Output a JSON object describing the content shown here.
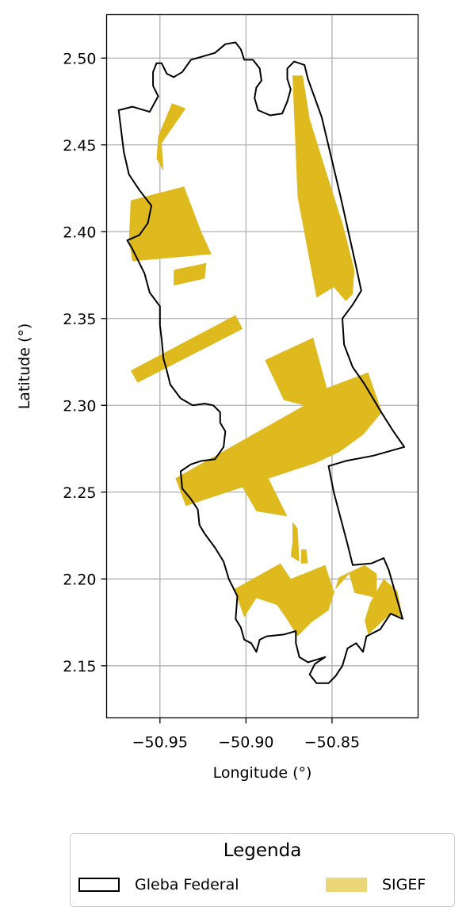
{
  "chart_data": {
    "type": "map",
    "xlabel": "Longitude (°)",
    "ylabel": "Latitude (°)",
    "xlim": [
      -50.981,
      -50.8
    ],
    "ylim": [
      2.12,
      2.525
    ],
    "xticks": [
      -50.95,
      -50.9,
      -50.85
    ],
    "xtick_labels": [
      "−50.95",
      "−50.90",
      "−50.85"
    ],
    "yticks": [
      2.15,
      2.2,
      2.25,
      2.3,
      2.35,
      2.4,
      2.45,
      2.5
    ],
    "ytick_labels": [
      "2.15",
      "2.20",
      "2.25",
      "2.30",
      "2.35",
      "2.40",
      "2.45",
      "2.50"
    ],
    "grid": true,
    "colors": {
      "sigef": "#debA1e",
      "outline": "#000000",
      "grid": "#b0b0b0"
    },
    "gleba_boundary": [
      [
        -50.974,
        2.47
      ],
      [
        -50.966,
        2.472
      ],
      [
        -50.956,
        2.469
      ],
      [
        -50.951,
        2.478
      ],
      [
        -50.954,
        2.484
      ],
      [
        -50.954,
        2.492
      ],
      [
        -50.952,
        2.497
      ],
      [
        -50.949,
        2.497
      ],
      [
        -50.946,
        2.491
      ],
      [
        -50.942,
        2.489
      ],
      [
        -50.937,
        2.492
      ],
      [
        -50.932,
        2.499
      ],
      [
        -50.925,
        2.501
      ],
      [
        -50.918,
        2.503
      ],
      [
        -50.912,
        2.508
      ],
      [
        -50.906,
        2.509
      ],
      [
        -50.903,
        2.505
      ],
      [
        -50.901,
        2.499
      ],
      [
        -50.896,
        2.499
      ],
      [
        -50.892,
        2.494
      ],
      [
        -50.891,
        2.487
      ],
      [
        -50.894,
        2.483
      ],
      [
        -50.895,
        2.477
      ],
      [
        -50.893,
        2.47
      ],
      [
        -50.886,
        2.467
      ],
      [
        -50.879,
        2.468
      ],
      [
        -50.876,
        2.475
      ],
      [
        -50.874,
        2.482
      ],
      [
        -50.876,
        2.488
      ],
      [
        -50.876,
        2.494
      ],
      [
        -50.872,
        2.498
      ],
      [
        -50.866,
        2.496
      ],
      [
        -50.864,
        2.488
      ],
      [
        -50.856,
        2.466
      ],
      [
        -50.845,
        2.42
      ],
      [
        -50.836,
        2.38
      ],
      [
        -50.833,
        2.366
      ],
      [
        -50.838,
        2.358
      ],
      [
        -50.844,
        2.35
      ],
      [
        -50.843,
        2.335
      ],
      [
        -50.838,
        2.322
      ],
      [
        -50.831,
        2.312
      ],
      [
        -50.822,
        2.297
      ],
      [
        -50.815,
        2.286
      ],
      [
        -50.808,
        2.276
      ],
      [
        -50.826,
        2.271
      ],
      [
        -50.842,
        2.268
      ],
      [
        -50.852,
        2.265
      ],
      [
        -50.849,
        2.25
      ],
      [
        -50.845,
        2.235
      ],
      [
        -50.841,
        2.22
      ],
      [
        -50.838,
        2.208
      ],
      [
        -50.827,
        2.209
      ],
      [
        -50.82,
        2.212
      ],
      [
        -50.817,
        2.205
      ],
      [
        -50.813,
        2.191
      ],
      [
        -50.809,
        2.177
      ],
      [
        -50.816,
        2.18
      ],
      [
        -50.822,
        2.171
      ],
      [
        -50.83,
        2.167
      ],
      [
        -50.832,
        2.158
      ],
      [
        -50.836,
        2.163
      ],
      [
        -50.841,
        2.16
      ],
      [
        -50.844,
        2.15
      ],
      [
        -50.848,
        2.144
      ],
      [
        -50.852,
        2.14
      ],
      [
        -50.859,
        2.14
      ],
      [
        -50.863,
        2.145
      ],
      [
        -50.86,
        2.151
      ],
      [
        -50.854,
        2.155
      ],
      [
        -50.864,
        2.152
      ],
      [
        -50.869,
        2.155
      ],
      [
        -50.871,
        2.163
      ],
      [
        -50.871,
        2.17
      ],
      [
        -50.878,
        2.168
      ],
      [
        -50.888,
        2.167
      ],
      [
        -50.892,
        2.165
      ],
      [
        -50.894,
        2.158
      ],
      [
        -50.897,
        2.163
      ],
      [
        -50.901,
        2.165
      ],
      [
        -50.903,
        2.172
      ],
      [
        -50.906,
        2.177
      ],
      [
        -50.905,
        2.19
      ],
      [
        -50.91,
        2.2
      ],
      [
        -50.913,
        2.21
      ],
      [
        -50.918,
        2.218
      ],
      [
        -50.924,
        2.226
      ],
      [
        -50.927,
        2.231
      ],
      [
        -50.928,
        2.24
      ],
      [
        -50.932,
        2.246
      ],
      [
        -50.937,
        2.252
      ],
      [
        -50.938,
        2.262
      ],
      [
        -50.932,
        2.266
      ],
      [
        -50.926,
        2.268
      ],
      [
        -50.918,
        2.269
      ],
      [
        -50.913,
        2.276
      ],
      [
        -50.912,
        2.285
      ],
      [
        -50.915,
        2.29
      ],
      [
        -50.915,
        2.296
      ],
      [
        -50.919,
        2.3
      ],
      [
        -50.924,
        2.301
      ],
      [
        -50.931,
        2.3
      ],
      [
        -50.938,
        2.304
      ],
      [
        -50.944,
        2.312
      ],
      [
        -50.946,
        2.32
      ],
      [
        -50.948,
        2.327
      ],
      [
        -50.949,
        2.338
      ],
      [
        -50.95,
        2.346
      ],
      [
        -50.95,
        2.357
      ],
      [
        -50.956,
        2.365
      ],
      [
        -50.959,
        2.376
      ],
      [
        -50.963,
        2.384
      ],
      [
        -50.966,
        2.39
      ],
      [
        -50.969,
        2.395
      ],
      [
        -50.962,
        2.398
      ],
      [
        -50.957,
        2.405
      ],
      [
        -50.955,
        2.415
      ],
      [
        -50.962,
        2.424
      ],
      [
        -50.968,
        2.433
      ],
      [
        -50.971,
        2.446
      ],
      [
        -50.974,
        2.47
      ]
    ],
    "sigef_parcels": [
      [
        [
          -50.943,
          2.474
        ],
        [
          -50.935,
          2.471
        ],
        [
          -50.949,
          2.451
        ],
        [
          -50.948,
          2.435
        ],
        [
          -50.952,
          2.442
        ],
        [
          -50.951,
          2.455
        ]
      ],
      [
        [
          -50.967,
          2.418
        ],
        [
          -50.936,
          2.426
        ],
        [
          -50.926,
          2.4
        ],
        [
          -50.92,
          2.387
        ],
        [
          -50.966,
          2.383
        ],
        [
          -50.968,
          2.395
        ]
      ],
      [
        [
          -50.942,
          2.378
        ],
        [
          -50.923,
          2.382
        ],
        [
          -50.924,
          2.373
        ],
        [
          -50.942,
          2.369
        ]
      ],
      [
        [
          -50.967,
          2.32
        ],
        [
          -50.906,
          2.352
        ],
        [
          -50.902,
          2.344
        ],
        [
          -50.963,
          2.313
        ]
      ],
      [
        [
          -50.867,
          2.49
        ],
        [
          -50.863,
          2.465
        ],
        [
          -50.852,
          2.43
        ],
        [
          -50.844,
          2.405
        ],
        [
          -50.837,
          2.378
        ],
        [
          -50.838,
          2.364
        ],
        [
          -50.842,
          2.36
        ],
        [
          -50.849,
          2.368
        ],
        [
          -50.859,
          2.362
        ],
        [
          -50.87,
          2.42
        ],
        [
          -50.872,
          2.466
        ],
        [
          -50.873,
          2.49
        ]
      ],
      [
        [
          -50.889,
          2.326
        ],
        [
          -50.861,
          2.339
        ],
        [
          -50.853,
          2.31
        ],
        [
          -50.829,
          2.319
        ],
        [
          -50.821,
          2.296
        ],
        [
          -50.832,
          2.283
        ],
        [
          -50.846,
          2.273
        ],
        [
          -50.859,
          2.267
        ],
        [
          -50.935,
          2.242
        ],
        [
          -50.941,
          2.258
        ],
        [
          -50.866,
          2.3
        ],
        [
          -50.878,
          2.303
        ]
      ],
      [
        [
          -50.905,
          2.258
        ],
        [
          -50.889,
          2.262
        ],
        [
          -50.876,
          2.236
        ],
        [
          -50.894,
          2.239
        ]
      ],
      [
        [
          -50.873,
          2.233
        ],
        [
          -50.87,
          2.229
        ],
        [
          -50.869,
          2.21
        ],
        [
          -50.874,
          2.213
        ],
        [
          -50.873,
          2.221
        ]
      ],
      [
        [
          -50.868,
          2.217
        ],
        [
          -50.865,
          2.217
        ],
        [
          -50.864,
          2.209
        ],
        [
          -50.868,
          2.209
        ]
      ],
      [
        [
          -50.907,
          2.194
        ],
        [
          -50.88,
          2.209
        ],
        [
          -50.874,
          2.2
        ],
        [
          -50.854,
          2.208
        ],
        [
          -50.849,
          2.193
        ],
        [
          -50.84,
          2.203
        ],
        [
          -50.837,
          2.192
        ],
        [
          -50.824,
          2.189
        ],
        [
          -50.824,
          2.203
        ],
        [
          -50.831,
          2.208
        ],
        [
          -50.846,
          2.201
        ],
        [
          -50.852,
          2.182
        ],
        [
          -50.862,
          2.175
        ],
        [
          -50.87,
          2.167
        ],
        [
          -50.877,
          2.178
        ],
        [
          -50.882,
          2.185
        ],
        [
          -50.894,
          2.189
        ],
        [
          -50.901,
          2.178
        ]
      ],
      [
        [
          -50.82,
          2.2
        ],
        [
          -50.812,
          2.193
        ],
        [
          -50.809,
          2.178
        ],
        [
          -50.816,
          2.18
        ],
        [
          -50.829,
          2.168
        ],
        [
          -50.831,
          2.176
        ],
        [
          -50.828,
          2.186
        ]
      ]
    ],
    "legend": {
      "title": "Legenda",
      "entries": [
        {
          "label": "Gleba Federal",
          "style": "outline"
        },
        {
          "label": "SIGEF",
          "style": "fill"
        }
      ],
      "placement": "below-center"
    }
  }
}
